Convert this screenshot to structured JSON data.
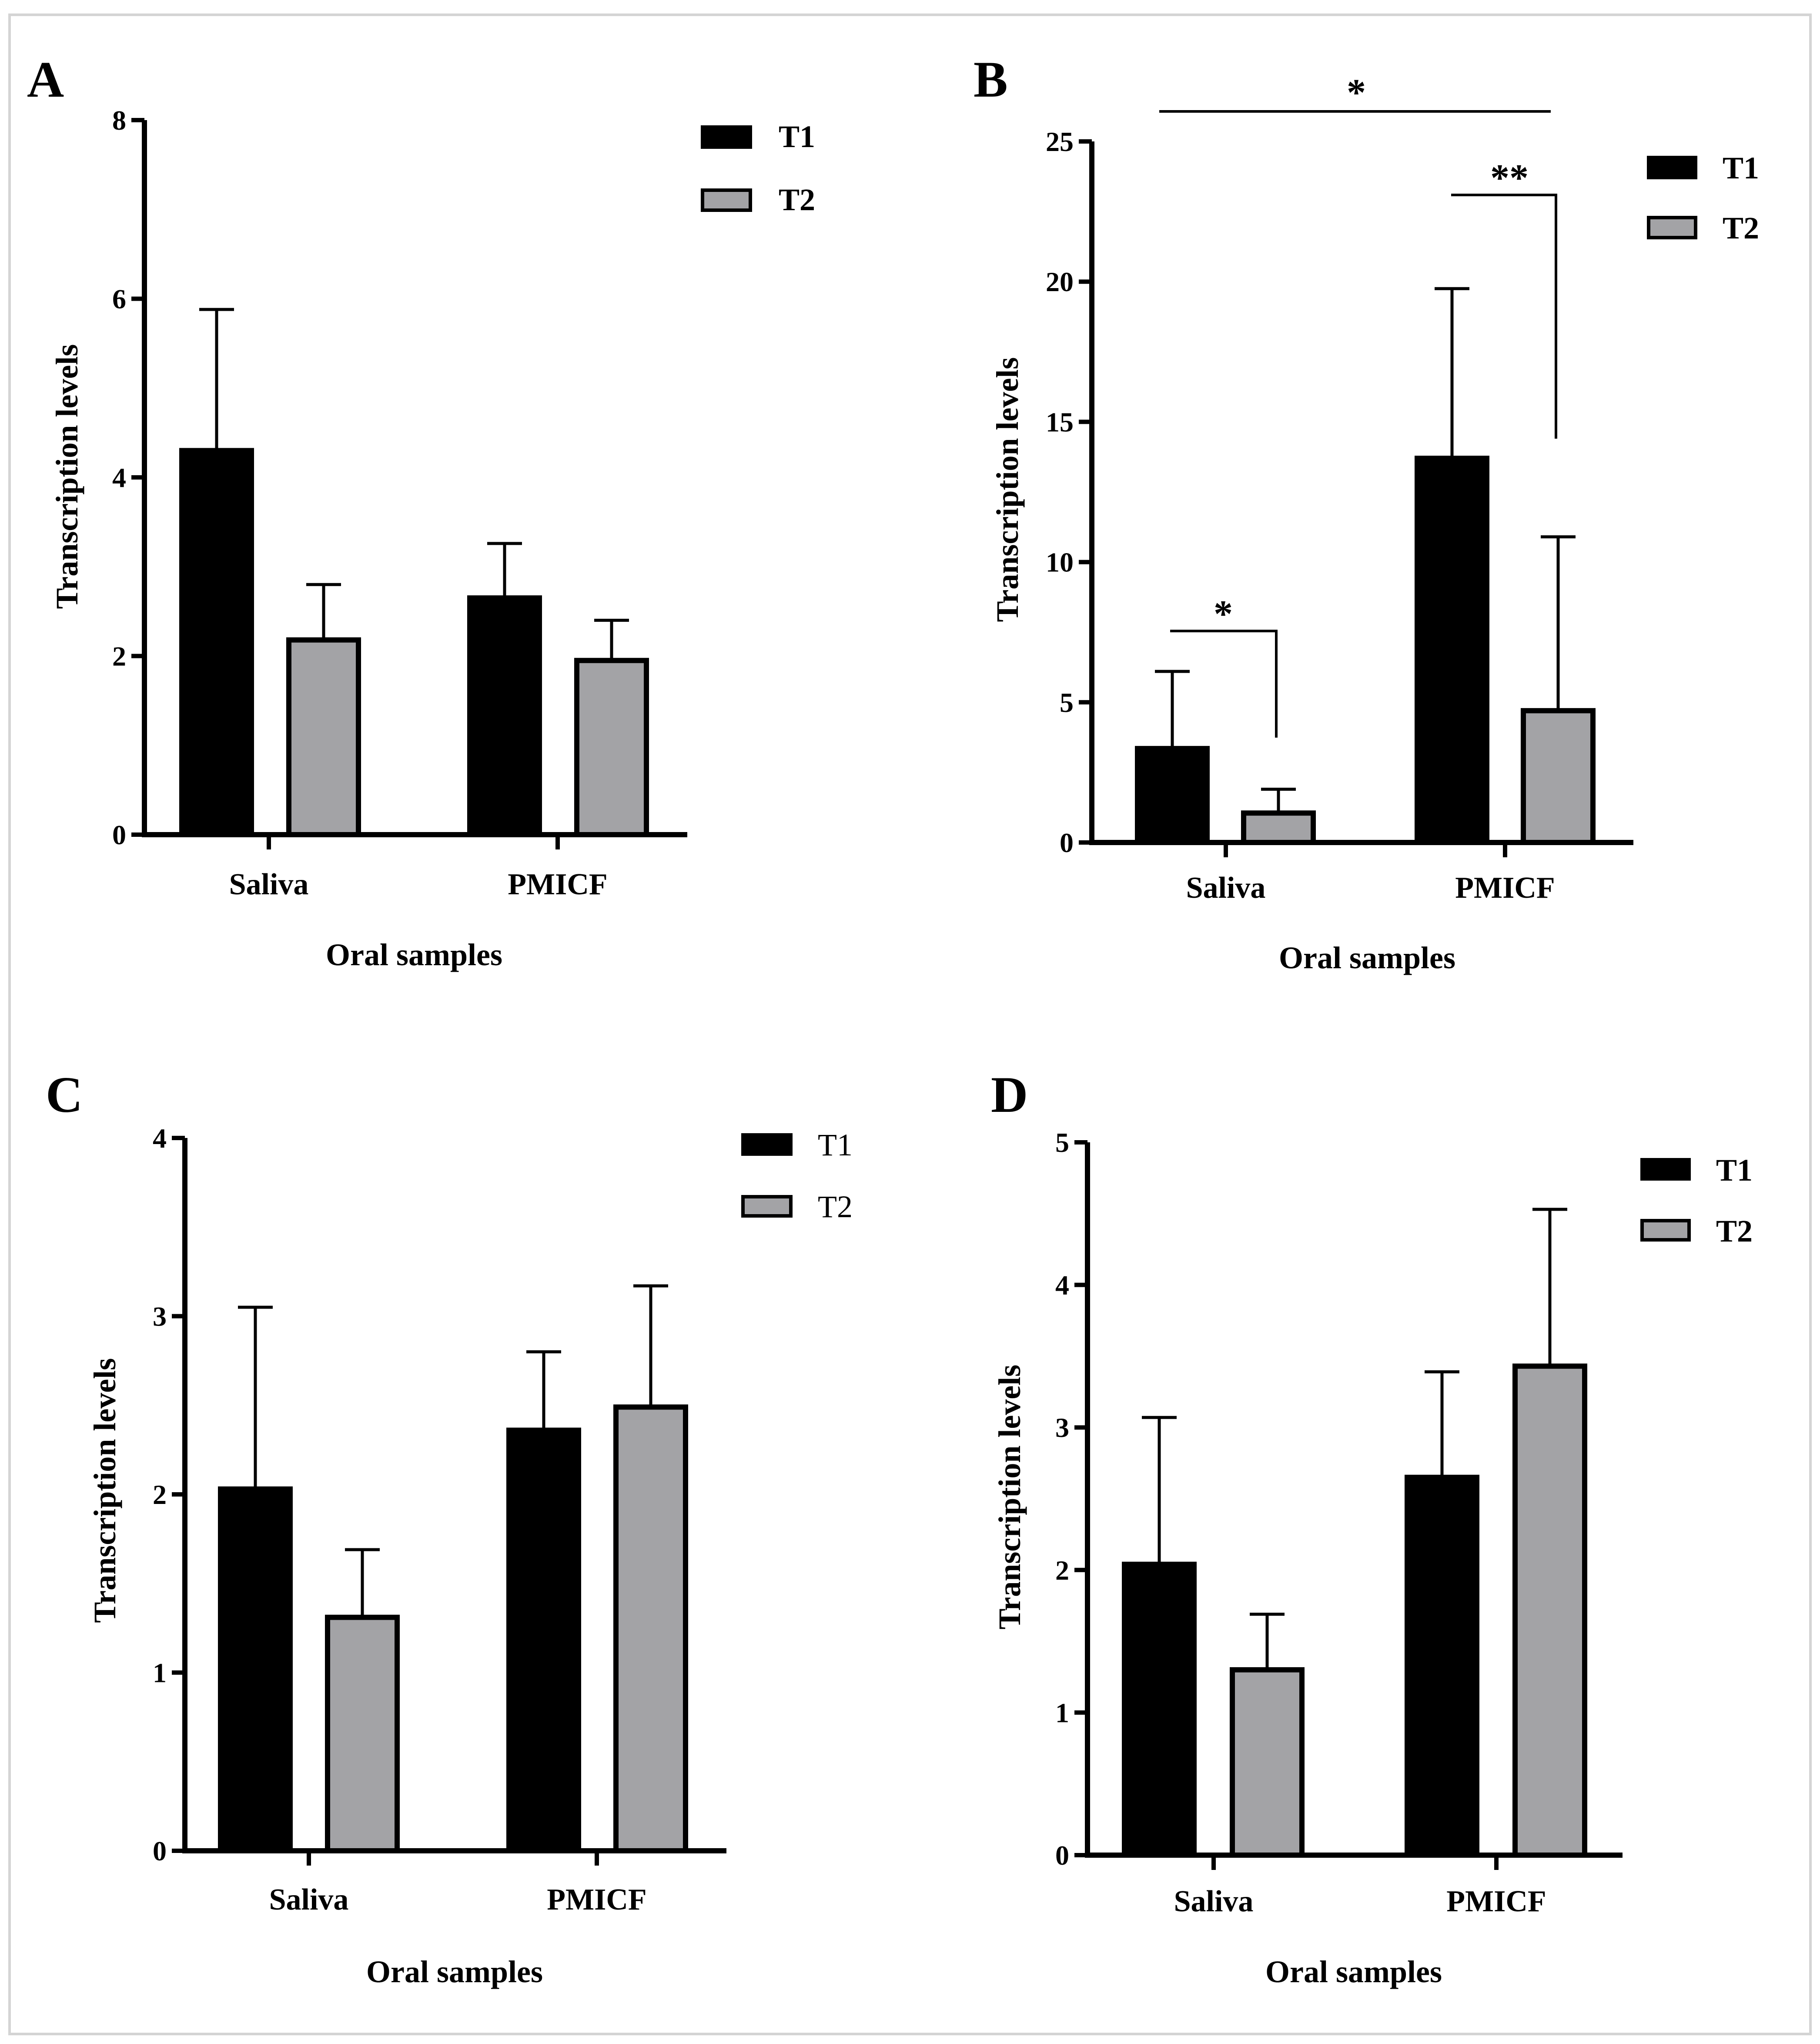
{
  "colors": {
    "t1": "#000000",
    "t2": "#a3a3a6",
    "outline": "#000000"
  },
  "chart_data": [
    {
      "panel": "A",
      "type": "bar",
      "categories": [
        "Saliva",
        "PMICF"
      ],
      "series": [
        {
          "name": "T1",
          "values": [
            4.3,
            2.65
          ],
          "errors": [
            1.58,
            0.61
          ]
        },
        {
          "name": "T2",
          "values": [
            2.18,
            1.95
          ],
          "errors": [
            0.62,
            0.45
          ]
        }
      ],
      "xlabel": "Oral samples",
      "ylabel": "Transcription levels",
      "ylim": [
        0,
        8
      ],
      "yticks": [
        "0",
        "2",
        "4",
        "6",
        "8"
      ],
      "legend_bold": true,
      "significance": []
    },
    {
      "panel": "B",
      "type": "bar",
      "categories": [
        "Saliva",
        "PMICF"
      ],
      "series": [
        {
          "name": "T1",
          "values": [
            3.35,
            13.7
          ],
          "errors": [
            2.75,
            6.05
          ]
        },
        {
          "name": "T2",
          "values": [
            1.05,
            4.7
          ],
          "errors": [
            0.85,
            6.2
          ]
        }
      ],
      "xlabel": "Oral samples",
      "ylabel": "Transcription levels",
      "ylim": [
        0,
        25
      ],
      "yticks": [
        "0",
        "5",
        "10",
        "15",
        "20",
        "25"
      ],
      "legend_bold": true,
      "significance": [
        {
          "label": "*",
          "from": "Saliva T1",
          "to": "Saliva T2"
        },
        {
          "label": "**",
          "from": "PMICF T1",
          "to": "PMICF T2"
        },
        {
          "label": "*",
          "from": "Saliva",
          "to": "PMICF"
        }
      ]
    },
    {
      "panel": "C",
      "type": "bar",
      "categories": [
        "Saliva",
        "PMICF"
      ],
      "series": [
        {
          "name": "T1",
          "values": [
            2.03,
            2.36
          ],
          "errors": [
            1.02,
            0.44
          ]
        },
        {
          "name": "T2",
          "values": [
            1.31,
            2.49
          ],
          "errors": [
            0.38,
            0.68
          ]
        }
      ],
      "xlabel": "Oral samples",
      "ylabel": "Transcription levels",
      "ylim": [
        0,
        4
      ],
      "yticks": [
        "0",
        "1",
        "2",
        "3",
        "4"
      ],
      "legend_bold": false,
      "significance": []
    },
    {
      "panel": "D",
      "type": "bar",
      "categories": [
        "Saliva",
        "PMICF"
      ],
      "series": [
        {
          "name": "T1",
          "values": [
            2.04,
            2.65
          ],
          "errors": [
            1.03,
            0.74
          ]
        },
        {
          "name": "T2",
          "values": [
            1.3,
            3.43
          ],
          "errors": [
            0.39,
            1.1
          ]
        }
      ],
      "xlabel": "Oral samples",
      "ylabel": "Transcription levels",
      "ylim": [
        0,
        5
      ],
      "yticks": [
        "0",
        "1",
        "2",
        "3",
        "4",
        "5"
      ],
      "legend_bold": true,
      "significance": []
    }
  ]
}
